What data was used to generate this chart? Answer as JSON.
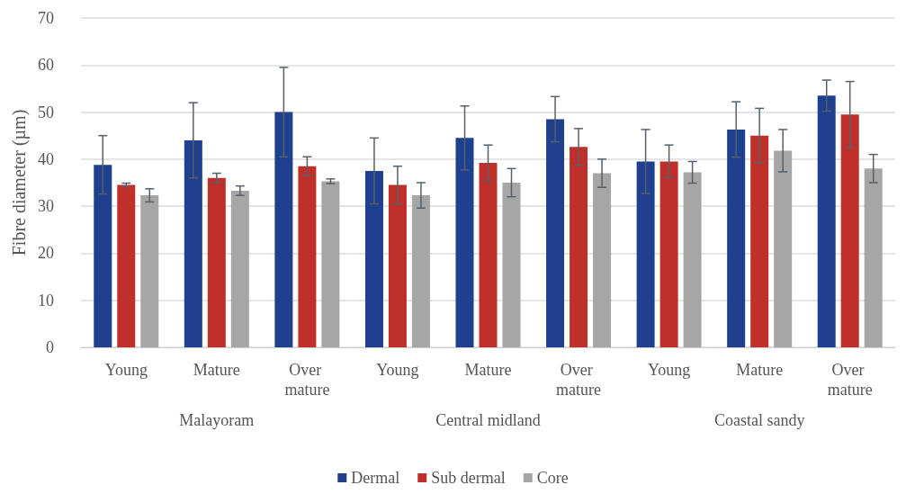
{
  "chart_data": {
    "type": "bar",
    "categories": [
      "Young",
      "Mature",
      "Over mature",
      "Young",
      "Mature",
      "Over mature",
      "Young",
      "Mature",
      "Over mature"
    ],
    "annotations": [
      "Malayoram",
      "Central midland",
      "Coastal sandy"
    ],
    "ylabel": "Fibre diameter (µm)",
    "ylim": [
      0,
      70
    ],
    "yticks": [
      0,
      10,
      20,
      30,
      40,
      50,
      60,
      70
    ],
    "grid": "y",
    "legend": "bottom",
    "series": [
      {
        "name": "Dermal",
        "color": "#1f3f8f",
        "values": [
          38.8,
          44,
          50,
          37.5,
          44.5,
          48.5,
          39.5,
          46.3,
          53.5
        ],
        "errors": [
          6.2,
          8,
          9.5,
          7,
          6.8,
          4.8,
          6.8,
          5.9,
          3.3
        ]
      },
      {
        "name": "Sub dermal",
        "color": "#c0302a",
        "values": [
          34.5,
          36,
          38.5,
          34.5,
          39.2,
          42.6,
          39.5,
          45,
          49.5
        ],
        "errors": [
          0.4,
          1,
          2,
          4,
          3.8,
          3.9,
          3.5,
          5.8,
          7
        ]
      },
      {
        "name": "Core",
        "color": "#a6a6a6",
        "values": [
          32.3,
          33.3,
          35.3,
          32.3,
          35,
          37,
          37.2,
          41.8,
          38
        ],
        "errors": [
          1.4,
          1,
          0.5,
          2.7,
          3,
          3,
          2.3,
          4.5,
          3
        ]
      }
    ]
  }
}
